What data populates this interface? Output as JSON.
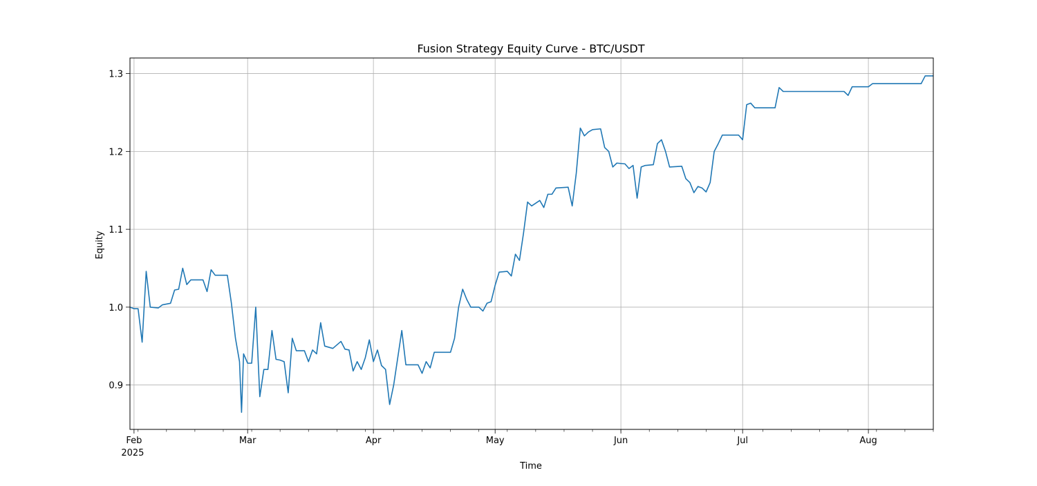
{
  "chart_data": {
    "type": "line",
    "title": "Fusion Strategy Equity Curve - BTC/USDT",
    "xlabel": "Time",
    "ylabel": "Equity",
    "grid": true,
    "xlim": [
      "2025-01-31",
      "2025-08-17"
    ],
    "ylim": [
      0.843,
      1.32
    ],
    "x_ticks": [
      {
        "date": "2025-02-01",
        "label": "Feb",
        "sublabel": "2025"
      },
      {
        "date": "2025-03-01",
        "label": "Mar"
      },
      {
        "date": "2025-04-01",
        "label": "Apr"
      },
      {
        "date": "2025-05-01",
        "label": "May"
      },
      {
        "date": "2025-06-01",
        "label": "Jun"
      },
      {
        "date": "2025-07-01",
        "label": "Jul"
      },
      {
        "date": "2025-08-01",
        "label": "Aug"
      }
    ],
    "y_ticks": [
      0.9,
      1.0,
      1.1,
      1.2,
      1.3
    ],
    "y_tick_labels": [
      "0.9",
      "1.0",
      "1.1",
      "1.2",
      "1.3"
    ],
    "series": [
      {
        "color": "#1f77b4",
        "points": [
          [
            "2025-01-31",
            1.0
          ],
          [
            "2025-02-01",
            0.998
          ],
          [
            "2025-02-02",
            0.998
          ],
          [
            "2025-02-03",
            0.955
          ],
          [
            "2025-02-04",
            1.046
          ],
          [
            "2025-02-05",
            1.0
          ],
          [
            "2025-02-07",
            0.999
          ],
          [
            "2025-02-08",
            1.003
          ],
          [
            "2025-02-10",
            1.005
          ],
          [
            "2025-02-11",
            1.022
          ],
          [
            "2025-02-12",
            1.023
          ],
          [
            "2025-02-13",
            1.05
          ],
          [
            "2025-02-14",
            1.029
          ],
          [
            "2025-02-15",
            1.035
          ],
          [
            "2025-02-18",
            1.035
          ],
          [
            "2025-02-19",
            1.02
          ],
          [
            "2025-02-20",
            1.048
          ],
          [
            "2025-02-21",
            1.041
          ],
          [
            "2025-02-24",
            1.041
          ],
          [
            "2025-02-25",
            1.005
          ],
          [
            "2025-02-26",
            0.96
          ],
          [
            "2025-02-27",
            0.93
          ],
          [
            "2025-02-27T12",
            0.865
          ],
          [
            "2025-02-28",
            0.94
          ],
          [
            "2025-03-01",
            0.928
          ],
          [
            "2025-03-02",
            0.928
          ],
          [
            "2025-03-03",
            1.0
          ],
          [
            "2025-03-04",
            0.885
          ],
          [
            "2025-03-05",
            0.92
          ],
          [
            "2025-03-06",
            0.92
          ],
          [
            "2025-03-07",
            0.97
          ],
          [
            "2025-03-08",
            0.933
          ],
          [
            "2025-03-09",
            0.932
          ],
          [
            "2025-03-10",
            0.93
          ],
          [
            "2025-03-11",
            0.89
          ],
          [
            "2025-03-12",
            0.96
          ],
          [
            "2025-03-13",
            0.944
          ],
          [
            "2025-03-15",
            0.944
          ],
          [
            "2025-03-16",
            0.93
          ],
          [
            "2025-03-17",
            0.945
          ],
          [
            "2025-03-18",
            0.94
          ],
          [
            "2025-03-19",
            0.98
          ],
          [
            "2025-03-20",
            0.95
          ],
          [
            "2025-03-22",
            0.947
          ],
          [
            "2025-03-24",
            0.956
          ],
          [
            "2025-03-25",
            0.946
          ],
          [
            "2025-03-26",
            0.945
          ],
          [
            "2025-03-27",
            0.918
          ],
          [
            "2025-03-28",
            0.93
          ],
          [
            "2025-03-29",
            0.92
          ],
          [
            "2025-03-30",
            0.935
          ],
          [
            "2025-03-31",
            0.958
          ],
          [
            "2025-04-01",
            0.93
          ],
          [
            "2025-04-02",
            0.945
          ],
          [
            "2025-04-03",
            0.925
          ],
          [
            "2025-04-04",
            0.92
          ],
          [
            "2025-04-05",
            0.875
          ],
          [
            "2025-04-06",
            0.9
          ],
          [
            "2025-04-07",
            0.935
          ],
          [
            "2025-04-08",
            0.97
          ],
          [
            "2025-04-09",
            0.926
          ],
          [
            "2025-04-12",
            0.926
          ],
          [
            "2025-04-13",
            0.915
          ],
          [
            "2025-04-14",
            0.93
          ],
          [
            "2025-04-15",
            0.922
          ],
          [
            "2025-04-16",
            0.942
          ],
          [
            "2025-04-20",
            0.942
          ],
          [
            "2025-04-21",
            0.96
          ],
          [
            "2025-04-22",
            1.0
          ],
          [
            "2025-04-23",
            1.023
          ],
          [
            "2025-04-24",
            1.01
          ],
          [
            "2025-04-25",
            1.0
          ],
          [
            "2025-04-27",
            1.0
          ],
          [
            "2025-04-28",
            0.995
          ],
          [
            "2025-04-29",
            1.005
          ],
          [
            "2025-04-30",
            1.007
          ],
          [
            "2025-05-01",
            1.028
          ],
          [
            "2025-05-02",
            1.045
          ],
          [
            "2025-05-04",
            1.046
          ],
          [
            "2025-05-05",
            1.04
          ],
          [
            "2025-05-06",
            1.068
          ],
          [
            "2025-05-07",
            1.06
          ],
          [
            "2025-05-08",
            1.095
          ],
          [
            "2025-05-09",
            1.135
          ],
          [
            "2025-05-10",
            1.13
          ],
          [
            "2025-05-12",
            1.137
          ],
          [
            "2025-05-13",
            1.128
          ],
          [
            "2025-05-14",
            1.145
          ],
          [
            "2025-05-15",
            1.145
          ],
          [
            "2025-05-16",
            1.153
          ],
          [
            "2025-05-19",
            1.154
          ],
          [
            "2025-05-20",
            1.13
          ],
          [
            "2025-05-21",
            1.172
          ],
          [
            "2025-05-22",
            1.23
          ],
          [
            "2025-05-23",
            1.22
          ],
          [
            "2025-05-24",
            1.225
          ],
          [
            "2025-05-25",
            1.228
          ],
          [
            "2025-05-27",
            1.229
          ],
          [
            "2025-05-28",
            1.205
          ],
          [
            "2025-05-29",
            1.2
          ],
          [
            "2025-05-30",
            1.18
          ],
          [
            "2025-05-31",
            1.185
          ],
          [
            "2025-06-02",
            1.184
          ],
          [
            "2025-06-03",
            1.178
          ],
          [
            "2025-06-04",
            1.182
          ],
          [
            "2025-06-05",
            1.14
          ],
          [
            "2025-06-06",
            1.18
          ],
          [
            "2025-06-07",
            1.182
          ],
          [
            "2025-06-09",
            1.183
          ],
          [
            "2025-06-10",
            1.21
          ],
          [
            "2025-06-11",
            1.215
          ],
          [
            "2025-06-12",
            1.2
          ],
          [
            "2025-06-13",
            1.18
          ],
          [
            "2025-06-16",
            1.181
          ],
          [
            "2025-06-17",
            1.165
          ],
          [
            "2025-06-18",
            1.16
          ],
          [
            "2025-06-19",
            1.147
          ],
          [
            "2025-06-20",
            1.155
          ],
          [
            "2025-06-21",
            1.153
          ],
          [
            "2025-06-22",
            1.148
          ],
          [
            "2025-06-23",
            1.16
          ],
          [
            "2025-06-24",
            1.2
          ],
          [
            "2025-06-25",
            1.21
          ],
          [
            "2025-06-26",
            1.221
          ],
          [
            "2025-06-30",
            1.221
          ],
          [
            "2025-07-01",
            1.215
          ],
          [
            "2025-07-02",
            1.26
          ],
          [
            "2025-07-03",
            1.262
          ],
          [
            "2025-07-04",
            1.256
          ],
          [
            "2025-07-09",
            1.256
          ],
          [
            "2025-07-10",
            1.282
          ],
          [
            "2025-07-11",
            1.277
          ],
          [
            "2025-07-26",
            1.277
          ],
          [
            "2025-07-27",
            1.272
          ],
          [
            "2025-07-28",
            1.283
          ],
          [
            "2025-08-01",
            1.283
          ],
          [
            "2025-08-02",
            1.287
          ],
          [
            "2025-08-14",
            1.287
          ],
          [
            "2025-08-15",
            1.297
          ],
          [
            "2025-08-17",
            1.297
          ]
        ]
      }
    ]
  }
}
